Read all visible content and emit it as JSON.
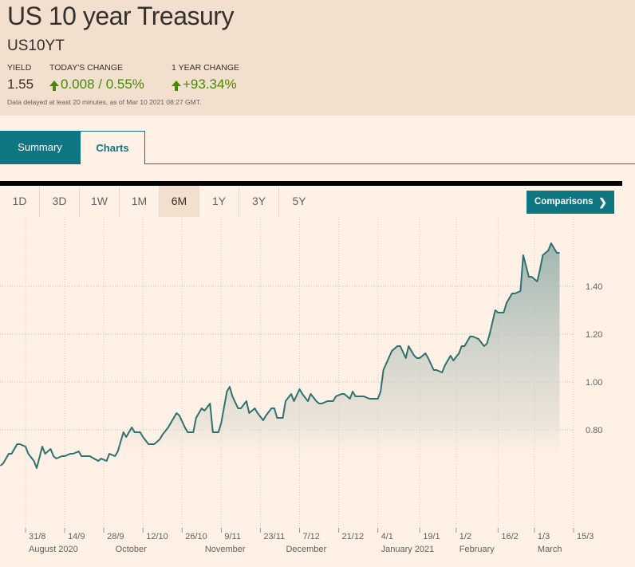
{
  "header": {
    "title": "US 10 year Treasury",
    "symbol": "US10YT",
    "yield_label": "YIELD",
    "yield_value": "1.55",
    "today_label": "TODAY'S CHANGE",
    "today_value": "0.008 / 0.55%",
    "year_label": "1 YEAR CHANGE",
    "year_value": "+93.34%",
    "note": "Data delayed at least 20 minutes, as of Mar 10 2021 08:27 GMT."
  },
  "tabs": [
    {
      "label": "Summary",
      "active": true
    },
    {
      "label": "Charts",
      "active": false
    }
  ],
  "ranges": [
    {
      "label": "1D"
    },
    {
      "label": "3D"
    },
    {
      "label": "1W"
    },
    {
      "label": "1M"
    },
    {
      "label": "6M",
      "selected": true
    },
    {
      "label": "1Y"
    },
    {
      "label": "3Y"
    },
    {
      "label": "5Y"
    }
  ],
  "comparisons": {
    "label": "Comparisons",
    "icon": "chevron-right-icon"
  },
  "colors": {
    "accent": "#0d7680",
    "up": "#458b00",
    "line": "#2e7172",
    "header_bg": "#f2dfce",
    "page_bg": "#fff1e5"
  },
  "chart_data": {
    "type": "area",
    "title": "",
    "xlabel": "",
    "ylabel": "",
    "grid": true,
    "ylim": [
      0.58,
      1.64
    ],
    "y_ticks": [
      "0.80",
      "1.00",
      "1.20",
      "1.40"
    ],
    "x_ticks": [
      {
        "label": "31/8",
        "date": "2020-08-31"
      },
      {
        "label": "14/9",
        "date": "2020-09-14"
      },
      {
        "label": "28/9",
        "date": "2020-09-28"
      },
      {
        "label": "12/10",
        "date": "2020-10-12"
      },
      {
        "label": "26/10",
        "date": "2020-10-26"
      },
      {
        "label": "9/11",
        "date": "2020-11-09"
      },
      {
        "label": "23/11",
        "date": "2020-11-23"
      },
      {
        "label": "7/12",
        "date": "2020-12-07"
      },
      {
        "label": "21/12",
        "date": "2020-12-21"
      },
      {
        "label": "4/1",
        "date": "2021-01-04"
      },
      {
        "label": "19/1",
        "date": "2021-01-19"
      },
      {
        "label": "1/2",
        "date": "2021-02-01"
      },
      {
        "label": "16/2",
        "date": "2021-02-16"
      },
      {
        "label": "1/3",
        "date": "2021-03-01"
      },
      {
        "label": "15/3",
        "date": "2021-03-15"
      }
    ],
    "month_labels": [
      {
        "label": "August 2020",
        "date": "2020-08-31"
      },
      {
        "label": "October",
        "date": "2020-10-01"
      },
      {
        "label": "November",
        "date": "2020-11-02"
      },
      {
        "label": "December",
        "date": "2020-12-01"
      },
      {
        "label": "January 2021",
        "date": "2021-01-04"
      },
      {
        "label": "February",
        "date": "2021-02-01"
      },
      {
        "label": "March",
        "date": "2021-03-01"
      }
    ],
    "series": [
      {
        "points": [
          [
            "2020-08-22",
            0.65
          ],
          [
            "2020-08-23",
            0.66
          ],
          [
            "2020-08-25",
            0.7
          ],
          [
            "2020-08-26",
            0.7
          ],
          [
            "2020-08-28",
            0.74
          ],
          [
            "2020-08-29",
            0.74
          ],
          [
            "2020-08-31",
            0.73
          ],
          [
            "2020-09-01",
            0.7
          ],
          [
            "2020-09-03",
            0.67
          ],
          [
            "2020-09-04",
            0.64
          ],
          [
            "2020-09-06",
            0.73
          ],
          [
            "2020-09-07",
            0.7
          ],
          [
            "2020-09-09",
            0.72
          ],
          [
            "2020-09-10",
            0.69
          ],
          [
            "2020-09-11",
            0.68
          ],
          [
            "2020-09-13",
            0.69
          ],
          [
            "2020-09-14",
            0.69
          ],
          [
            "2020-09-16",
            0.7
          ],
          [
            "2020-09-17",
            0.7
          ],
          [
            "2020-09-19",
            0.71
          ],
          [
            "2020-09-20",
            0.69
          ],
          [
            "2020-09-23",
            0.69
          ],
          [
            "2020-09-26",
            0.67
          ],
          [
            "2020-09-27",
            0.68
          ],
          [
            "2020-09-29",
            0.67
          ],
          [
            "2020-09-30",
            0.7
          ],
          [
            "2020-10-02",
            0.69
          ],
          [
            "2020-10-03",
            0.71
          ],
          [
            "2020-10-05",
            0.79
          ],
          [
            "2020-10-06",
            0.77
          ],
          [
            "2020-10-08",
            0.81
          ],
          [
            "2020-10-09",
            0.79
          ],
          [
            "2020-10-11",
            0.79
          ],
          [
            "2020-10-12",
            0.77
          ],
          [
            "2020-10-14",
            0.74
          ],
          [
            "2020-10-15",
            0.74
          ],
          [
            "2020-10-16",
            0.74
          ],
          [
            "2020-10-18",
            0.76
          ],
          [
            "2020-10-19",
            0.78
          ],
          [
            "2020-10-21",
            0.81
          ],
          [
            "2020-10-22",
            0.83
          ],
          [
            "2020-10-24",
            0.87
          ],
          [
            "2020-10-25",
            0.86
          ],
          [
            "2020-10-27",
            0.81
          ],
          [
            "2020-10-28",
            0.79
          ],
          [
            "2020-10-30",
            0.79
          ],
          [
            "2020-10-31",
            0.85
          ],
          [
            "2020-11-02",
            0.89
          ],
          [
            "2020-11-03",
            0.88
          ],
          [
            "2020-11-05",
            0.91
          ],
          [
            "2020-11-06",
            0.79
          ],
          [
            "2020-11-08",
            0.79
          ],
          [
            "2020-11-09",
            0.83
          ],
          [
            "2020-11-11",
            0.96
          ],
          [
            "2020-11-12",
            0.98
          ],
          [
            "2020-11-13",
            0.94
          ],
          [
            "2020-11-15",
            0.89
          ],
          [
            "2020-11-16",
            0.89
          ],
          [
            "2020-11-18",
            0.92
          ],
          [
            "2020-11-19",
            0.87
          ],
          [
            "2020-11-21",
            0.89
          ],
          [
            "2020-11-22",
            0.87
          ],
          [
            "2020-11-24",
            0.84
          ],
          [
            "2020-11-25",
            0.86
          ],
          [
            "2020-11-27",
            0.89
          ],
          [
            "2020-11-28",
            0.89
          ],
          [
            "2020-11-29",
            0.85
          ],
          [
            "2020-12-01",
            0.85
          ],
          [
            "2020-12-02",
            0.92
          ],
          [
            "2020-12-04",
            0.95
          ],
          [
            "2020-12-05",
            0.92
          ],
          [
            "2020-12-07",
            0.97
          ],
          [
            "2020-12-08",
            0.95
          ],
          [
            "2020-12-10",
            0.92
          ],
          [
            "2020-12-11",
            0.95
          ],
          [
            "2020-12-13",
            0.92
          ],
          [
            "2020-12-14",
            0.91
          ],
          [
            "2020-12-15",
            0.91
          ],
          [
            "2020-12-17",
            0.92
          ],
          [
            "2020-12-19",
            0.92
          ],
          [
            "2020-12-20",
            0.94
          ],
          [
            "2020-12-22",
            0.95
          ],
          [
            "2020-12-23",
            0.95
          ],
          [
            "2020-12-25",
            0.93
          ],
          [
            "2020-12-26",
            0.96
          ],
          [
            "2020-12-27",
            0.94
          ],
          [
            "2020-12-30",
            0.94
          ],
          [
            "2021-01-01",
            0.93
          ],
          [
            "2021-01-04",
            0.93
          ],
          [
            "2021-01-05",
            0.96
          ],
          [
            "2021-01-06",
            1.05
          ],
          [
            "2021-01-09",
            1.13
          ],
          [
            "2021-01-11",
            1.15
          ],
          [
            "2021-01-12",
            1.15
          ],
          [
            "2021-01-14",
            1.1
          ],
          [
            "2021-01-15",
            1.15
          ],
          [
            "2021-01-17",
            1.11
          ],
          [
            "2021-01-18",
            1.1
          ],
          [
            "2021-01-19",
            1.1
          ],
          [
            "2021-01-21",
            1.12
          ],
          [
            "2021-01-22",
            1.1
          ],
          [
            "2021-01-24",
            1.05
          ],
          [
            "2021-01-25",
            1.05
          ],
          [
            "2021-01-27",
            1.04
          ],
          [
            "2021-01-28",
            1.07
          ],
          [
            "2021-01-30",
            1.11
          ],
          [
            "2021-01-31",
            1.09
          ],
          [
            "2021-02-02",
            1.12
          ],
          [
            "2021-02-03",
            1.15
          ],
          [
            "2021-02-04",
            1.15
          ],
          [
            "2021-02-06",
            1.19
          ],
          [
            "2021-02-07",
            1.19
          ],
          [
            "2021-02-09",
            1.18
          ],
          [
            "2021-02-11",
            1.15
          ],
          [
            "2021-02-12",
            1.16
          ],
          [
            "2021-02-13",
            1.2
          ],
          [
            "2021-02-15",
            1.3
          ],
          [
            "2021-02-16",
            1.29
          ],
          [
            "2021-02-18",
            1.29
          ],
          [
            "2021-02-19",
            1.33
          ],
          [
            "2021-02-21",
            1.37
          ],
          [
            "2021-02-22",
            1.37
          ],
          [
            "2021-02-24",
            1.38
          ],
          [
            "2021-02-25",
            1.53
          ],
          [
            "2021-02-27",
            1.44
          ],
          [
            "2021-02-28",
            1.44
          ],
          [
            "2021-03-02",
            1.42
          ],
          [
            "2021-03-03",
            1.47
          ],
          [
            "2021-03-04",
            1.53
          ],
          [
            "2021-03-06",
            1.55
          ],
          [
            "2021-03-07",
            1.58
          ],
          [
            "2021-03-09",
            1.54
          ],
          [
            "2021-03-10",
            1.54
          ]
        ]
      }
    ]
  }
}
